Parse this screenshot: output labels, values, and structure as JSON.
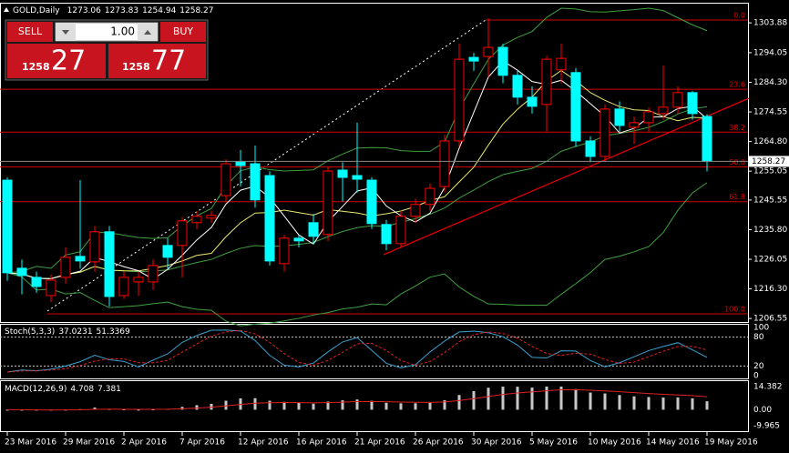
{
  "chart_data": {
    "type": "candlestick",
    "title": "GOLD,Daily",
    "categories": [
      "23 Mar 2016",
      null,
      null,
      null,
      "29 Mar 2016",
      null,
      null,
      null,
      "2 Apr 2016",
      null,
      null,
      null,
      "7 Apr 2016",
      null,
      null,
      null,
      "12 Apr 2016",
      null,
      null,
      null,
      "16 Apr 2016",
      null,
      null,
      null,
      "21 Apr 2016",
      null,
      null,
      null,
      "26 Apr 2016",
      null,
      null,
      null,
      "30 Apr 2016",
      null,
      null,
      null,
      "5 May 2016",
      null,
      null,
      null,
      "10 May 2016",
      null,
      null,
      null,
      "14 May 2016",
      null,
      null,
      null,
      "19 May 2016"
    ],
    "open": [
      1252.1,
      1223.1,
      1220.1,
      1214.1,
      1220.1,
      1227.0,
      1225.2,
      1235.1,
      1214.1,
      1218.6,
      1218.6,
      1230.6,
      1230.6,
      1238.1,
      1239.6,
      1247.0,
      1258.1,
      1257.5,
      1253.6,
      1224.6,
      1233.0,
      1238.1,
      1234.2,
      1255.4,
      1253.6,
      1252.1,
      1237.5,
      1231.2,
      1240.2,
      1244.1,
      1250.0,
      1265.0,
      1292.5,
      1292.8,
      1295.8,
      1286.6,
      1279.4,
      1277.0,
      1288.4,
      1287.5,
      1265.0,
      1259.9,
      1275.5,
      1269.5,
      1271.0,
      1274.0,
      1276.1,
      1280.9,
      1273.06
    ],
    "high": [
      1253.0,
      1226.0,
      1222.0,
      1221.0,
      1230.0,
      1252.1,
      1237.0,
      1237.0,
      1222.0,
      1222.0,
      1226.0,
      1233.0,
      1240.0,
      1242.0,
      1242.0,
      1259.0,
      1262.0,
      1263.5,
      1255.0,
      1234.0,
      1234.0,
      1241.0,
      1256.5,
      1258.0,
      1271.0,
      1253.0,
      1239.0,
      1242.0,
      1246.0,
      1251.0,
      1267.0,
      1297.0,
      1294.0,
      1305.4,
      1297.0,
      1288.0,
      1283.0,
      1293.0,
      1297.0,
      1289.0,
      1266.5,
      1277.0,
      1278.0,
      1273.0,
      1276.0,
      1289.8,
      1283.0,
      1281.5,
      1273.83
    ],
    "low": [
      1219.0,
      1214.5,
      1215.0,
      1212.0,
      1218.0,
      1223.0,
      1222.0,
      1210.5,
      1213.0,
      1214.0,
      1216.0,
      1223.0,
      1220.0,
      1236.0,
      1238.0,
      1245.0,
      1250.0,
      1243.0,
      1224.0,
      1222.0,
      1230.0,
      1231.0,
      1232.0,
      1245.0,
      1248.0,
      1236.0,
      1229.0,
      1230.0,
      1238.0,
      1242.0,
      1248.0,
      1263.0,
      1288.0,
      1286.0,
      1284.0,
      1277.0,
      1274.0,
      1268.0,
      1284.0,
      1263.0,
      1258.0,
      1258.0,
      1268.0,
      1264.0,
      1268.0,
      1272.0,
      1274.0,
      1272.0,
      1254.94
    ],
    "close": [
      1221.6,
      1220.7,
      1217.1,
      1219.2,
      1226.7,
      1225.5,
      1235.1,
      1213.8,
      1220.1,
      1220.1,
      1224.0,
      1226.7,
      1238.7,
      1240.2,
      1240.5,
      1257.5,
      1256.9,
      1245.6,
      1225.5,
      1233.0,
      1232.1,
      1233.6,
      1255.1,
      1253.0,
      1252.4,
      1237.8,
      1231.2,
      1240.2,
      1244.1,
      1249.4,
      1265.0,
      1291.9,
      1291.3,
      1295.8,
      1286.6,
      1279.4,
      1276.4,
      1291.9,
      1292.2,
      1265.0,
      1259.9,
      1275.5,
      1270.1,
      1271.0,
      1274.6,
      1276.1,
      1280.9,
      1274.0,
      1258.27
    ],
    "up_color": "#ff0000",
    "down_color": "#00ffff",
    "ylim": [
      1205.4,
      1307.5
    ],
    "yticks": [
      1303.88,
      1294.05,
      {
        "value": 1284.3,
        "label": "1284.30"
      },
      1274.55,
      {
        "value": 1264.8,
        "label": "1264.80"
      },
      1255.05,
      1245.55,
      {
        "value": 1235.8,
        "label": "1235.80"
      },
      1226.05,
      {
        "value": 1216.3,
        "label": "1216.30"
      },
      1206.55
    ],
    "fib_levels": [
      {
        "value": 1304.8,
        "label": "0.0"
      },
      {
        "value": 1282.0,
        "label": "23.6"
      },
      {
        "value": 1267.9,
        "label": "38.2"
      },
      {
        "value": 1256.45,
        "label": "50.0"
      },
      {
        "value": 1245.0,
        "label": "61.8"
      },
      {
        "value": 1208.1,
        "label": "100.0"
      }
    ],
    "stoch": {
      "title": "Stoch(5,3,3)",
      "values": [
        37.0231,
        51.3369
      ],
      "ylim": [
        0,
        100
      ],
      "yticks": [
        100,
        80,
        20,
        0
      ]
    },
    "macd": {
      "title": "MACD(12,26,9)",
      "values": [
        4.708,
        7.381
      ],
      "ylim": [
        -9.965,
        14.382
      ],
      "yticks": [
        14.382,
        {
          "value": 0,
          "label": "0.00"
        },
        -9.965
      ]
    },
    "trade": {
      "sell": "SELL",
      "buy": "BUY",
      "lot": "1.00",
      "bid_small": "1258",
      "bid_big": "27",
      "ask_small": "1258",
      "ask_big": "77"
    }
  }
}
